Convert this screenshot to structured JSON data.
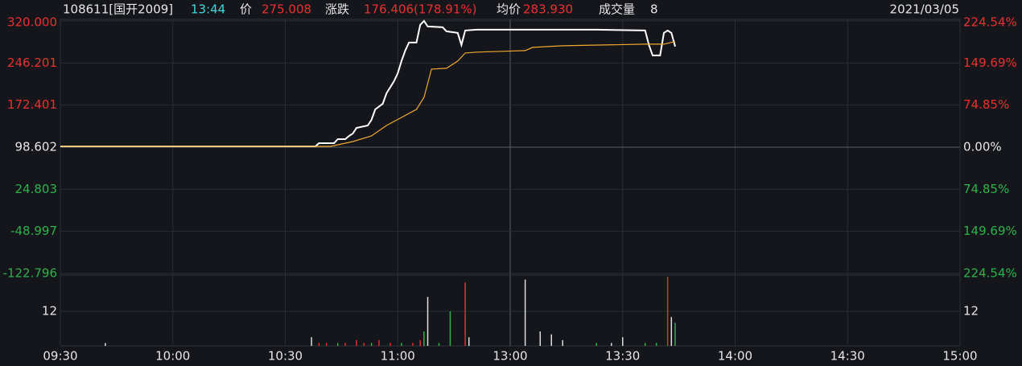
{
  "chart_data": {
    "type": "intraday",
    "header": {
      "code_name": "108611[国开2009]",
      "time": "13:44",
      "price_label": "价",
      "price": "275.008",
      "change_label": "涨跌",
      "change": "176.406(178.91%)",
      "avg_label": "均价",
      "avg": "283.930",
      "volume_label": "成交量",
      "volume": "8",
      "date": "2021/03/05"
    },
    "xticks": [
      "09:30",
      "10:00",
      "10:30",
      "11:00",
      "13:00",
      "13:30",
      "14:00",
      "14:30",
      "15:00"
    ],
    "ylim": [
      -122.796,
      320
    ],
    "yticks": [
      {
        "value": 320,
        "label": "320.000"
      },
      246.201,
      172.401,
      98.602,
      24.803,
      -48.997,
      -122.796
    ],
    "y2lim": [
      -224.54,
      224.54
    ],
    "y2ticks": [
      {
        "value": 224.54,
        "label": "224.54%"
      },
      {
        "value": 149.69,
        "label": "149.69%"
      },
      {
        "value": 74.85,
        "label": "74.85%"
      },
      {
        "value": 0,
        "label": "0.00%"
      },
      {
        "value": -74.85,
        "label": "74.85%"
      },
      {
        "value": -149.69,
        "label": "149.69%"
      },
      {
        "value": -224.54,
        "label": "224.54%"
      }
    ],
    "grid": true,
    "series": [
      {
        "color": "#ffffff",
        "x": [
          "09:30",
          "10:38",
          "10:39",
          "10:43",
          "10:44",
          "10:46",
          "10:47",
          "10:48",
          "10:49",
          "10:52",
          "10:53",
          "10:54",
          "10:56",
          "10:57",
          "10:59",
          "11:00",
          "11:01",
          "11:02",
          "11:03",
          "11:05",
          "11:06",
          "11:07",
          "11:08",
          "11:12",
          "11:13",
          "11:16",
          "11:17",
          "11:18",
          "11:21",
          "13:23",
          "13:36",
          "13:37",
          "13:38",
          "13:40",
          "13:41",
          "13:42",
          "13:43",
          "13:44"
        ],
        "values": [
          100.0,
          100.0,
          105.7,
          105.7,
          112.7,
          112.7,
          118.4,
          122.6,
          132.5,
          136.7,
          146.6,
          164.9,
          174.8,
          193.1,
          214.3,
          228.4,
          249.6,
          267.9,
          282.0,
          282.0,
          313.1,
          320.0,
          310.3,
          308.8,
          301.8,
          299.0,
          277.8,
          303.2,
          304.6,
          304.6,
          303.2,
          277.8,
          259.5,
          259.5,
          299.0,
          303.2,
          299.0,
          275.008
        ]
      },
      {
        "color": "#f0a830",
        "x": [
          "09:30",
          "10:42",
          "10:48",
          "10:53",
          "10:57",
          "11:01",
          "11:05",
          "11:07",
          "11:09",
          "11:13",
          "11:16",
          "11:18",
          "11:21",
          "13:04",
          "13:06",
          "13:14",
          "13:36",
          "13:41",
          "13:44"
        ],
        "values": [
          100.0,
          100.0,
          108.5,
          118.4,
          136.7,
          150.8,
          164.9,
          186.1,
          235.5,
          237.0,
          249.6,
          263.7,
          265.3,
          267.9,
          273.6,
          276.4,
          279.2,
          279.2,
          283.93
        ]
      }
    ],
    "volume": {
      "vlim": [
        0,
        24
      ],
      "vticks": [
        12
      ],
      "x": [
        "09:42",
        "10:37",
        "10:39",
        "10:41",
        "10:44",
        "10:46",
        "10:49",
        "10:51",
        "10:53",
        "10:55",
        "10:58",
        "11:01",
        "11:04",
        "11:06",
        "11:07",
        "11:08",
        "11:11",
        "11:14",
        "11:18",
        "11:19",
        "13:04",
        "13:08",
        "13:11",
        "13:14",
        "13:23",
        "13:27",
        "13:30",
        "13:36",
        "13:39",
        "13:42",
        "13:43",
        "13:44"
      ],
      "values": [
        1,
        3,
        1,
        1,
        1,
        1,
        2,
        1,
        1,
        2,
        1,
        1,
        1,
        2,
        5,
        17,
        1,
        12,
        22,
        3,
        23,
        5,
        4,
        2,
        1,
        1,
        3,
        1,
        1,
        24,
        10,
        8
      ],
      "colors": [
        "#dddddd",
        "#dddddd",
        "#e0312c",
        "#e0312c",
        "#2ab34a",
        "#e0312c",
        "#e0312c",
        "#e0312c",
        "#2ab34a",
        "#e0312c",
        "#e0312c",
        "#2ab34a",
        "#e0312c",
        "#e0312c",
        "#2ab34a",
        "#dddddd",
        "#2ab34a",
        "#2ab34a",
        "#e0312c",
        "#dddddd",
        "#dddddd",
        "#dddddd",
        "#dddddd",
        "#dddddd",
        "#2ab34a",
        "#dddddd",
        "#dddddd",
        "#2ab34a",
        "#2ab34a",
        "#e0312c",
        "#dddddd",
        "#2ab34a"
      ]
    }
  }
}
